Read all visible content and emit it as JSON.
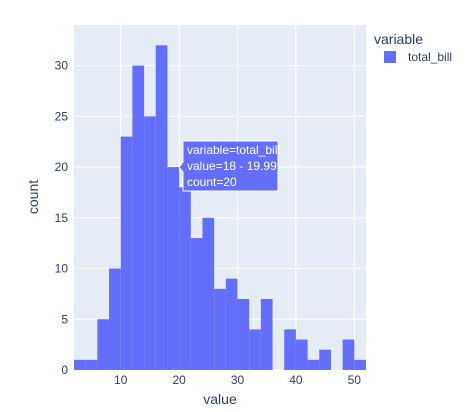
{
  "chart_data": {
    "type": "bar",
    "subtype": "histogram",
    "xlabel": "value",
    "ylabel": "count",
    "xlim": [
      2.0,
      52.0
    ],
    "ylim": [
      0,
      34
    ],
    "xticks": [
      10,
      20,
      30,
      40,
      50
    ],
    "yticks": [
      0,
      5,
      10,
      15,
      20,
      25,
      30
    ],
    "grid": true,
    "legend": {
      "title": "variable",
      "position": "top-right"
    },
    "series": [
      {
        "name": "total_bill",
        "color": "#636efa",
        "bins": [
          {
            "x0": 2,
            "x1": 4,
            "count": 1
          },
          {
            "x0": 4,
            "x1": 6,
            "count": 1
          },
          {
            "x0": 6,
            "x1": 8,
            "count": 5
          },
          {
            "x0": 8,
            "x1": 10,
            "count": 10
          },
          {
            "x0": 10,
            "x1": 12,
            "count": 23
          },
          {
            "x0": 12,
            "x1": 14,
            "count": 30
          },
          {
            "x0": 14,
            "x1": 16,
            "count": 25
          },
          {
            "x0": 16,
            "x1": 18,
            "count": 32
          },
          {
            "x0": 18,
            "x1": 20,
            "count": 20
          },
          {
            "x0": 20,
            "x1": 22,
            "count": 18
          },
          {
            "x0": 22,
            "x1": 24,
            "count": 13
          },
          {
            "x0": 24,
            "x1": 26,
            "count": 15
          },
          {
            "x0": 26,
            "x1": 28,
            "count": 8
          },
          {
            "x0": 28,
            "x1": 30,
            "count": 9
          },
          {
            "x0": 30,
            "x1": 32,
            "count": 7
          },
          {
            "x0": 32,
            "x1": 34,
            "count": 4
          },
          {
            "x0": 34,
            "x1": 36,
            "count": 7
          },
          {
            "x0": 36,
            "x1": 38,
            "count": 0
          },
          {
            "x0": 38,
            "x1": 40,
            "count": 4
          },
          {
            "x0": 40,
            "x1": 42,
            "count": 3
          },
          {
            "x0": 42,
            "x1": 44,
            "count": 1
          },
          {
            "x0": 44,
            "x1": 46,
            "count": 2
          },
          {
            "x0": 46,
            "x1": 48,
            "count": 0
          },
          {
            "x0": 48,
            "x1": 50,
            "count": 3
          },
          {
            "x0": 50,
            "x1": 52,
            "count": 1
          }
        ]
      }
    ],
    "hover": {
      "bin_index": 8,
      "lines": [
        "variable=total_bill",
        "value=18 - 19.99",
        "count=20"
      ]
    }
  }
}
